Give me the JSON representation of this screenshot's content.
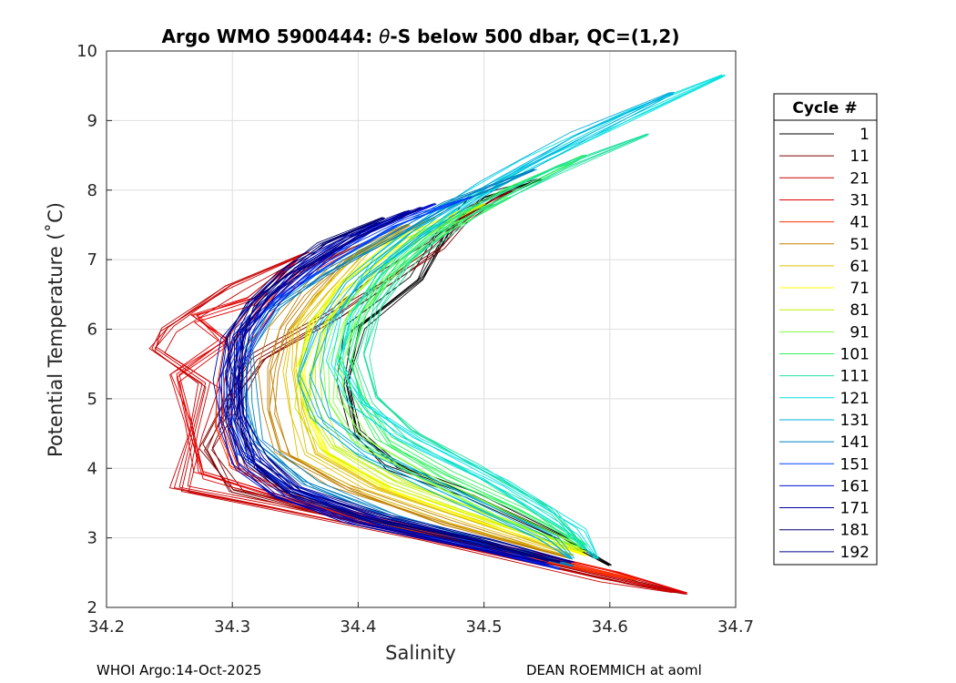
{
  "chart_data": {
    "type": "line",
    "title_prefix": "Argo WMO 5900444:",
    "title_theta": "θ",
    "title_suffix": "-S below 500 dbar,  QC=(1,2)",
    "xlabel": "Salinity",
    "ylabel": "Potential Temperature (˚C)",
    "xlim": [
      34.2,
      34.7
    ],
    "ylim": [
      2,
      10
    ],
    "xticks": [
      34.2,
      34.3,
      34.4,
      34.5,
      34.6,
      34.7
    ],
    "xtick_labels": [
      "34.2",
      "34.3",
      "34.4",
      "34.5",
      "34.6",
      "34.7"
    ],
    "yticks": [
      2,
      3,
      4,
      5,
      6,
      7,
      8,
      9,
      10
    ],
    "ytick_labels": [
      "2",
      "3",
      "4",
      "5",
      "6",
      "7",
      "8",
      "9",
      "10"
    ],
    "grid": true,
    "legend_title": "Cycle #",
    "legend_position": "right-outside",
    "series": [
      {
        "name": "1",
        "color": "#000000",
        "points": [
          [
            34.545,
            8.15
          ],
          [
            34.5,
            7.85
          ],
          [
            34.47,
            7.35
          ],
          [
            34.45,
            6.7
          ],
          [
            34.4,
            6.0
          ],
          [
            34.39,
            5.2
          ],
          [
            34.4,
            4.5
          ],
          [
            34.43,
            4.0
          ],
          [
            34.49,
            3.6
          ],
          [
            34.56,
            3.0
          ],
          [
            34.6,
            2.6
          ]
        ]
      },
      {
        "name": "11",
        "color": "#7f0000",
        "points": [
          [
            34.52,
            8.0
          ],
          [
            34.48,
            7.6
          ],
          [
            34.46,
            7.2
          ],
          [
            34.43,
            6.8
          ],
          [
            34.38,
            6.2
          ],
          [
            34.32,
            5.6
          ],
          [
            34.3,
            5.0
          ],
          [
            34.28,
            4.3
          ],
          [
            34.3,
            3.7
          ],
          [
            34.38,
            3.35
          ],
          [
            34.5,
            2.85
          ],
          [
            34.62,
            2.35
          ],
          [
            34.66,
            2.2
          ]
        ]
      },
      {
        "name": "21",
        "color": "#c80000",
        "points": [
          [
            34.36,
            7.1
          ],
          [
            34.3,
            6.6
          ],
          [
            34.25,
            6.0
          ],
          [
            34.24,
            5.7
          ],
          [
            34.28,
            5.2
          ],
          [
            34.27,
            4.5
          ],
          [
            34.26,
            3.7
          ],
          [
            34.33,
            3.45
          ],
          [
            34.45,
            3.0
          ],
          [
            34.6,
            2.4
          ],
          [
            34.65,
            2.22
          ]
        ]
      },
      {
        "name": "31",
        "color": "#e00000",
        "points": [
          [
            34.35,
            7.0
          ],
          [
            34.31,
            6.4
          ],
          [
            34.265,
            6.15
          ],
          [
            34.29,
            5.8
          ],
          [
            34.25,
            5.3
          ],
          [
            34.26,
            4.6
          ],
          [
            34.27,
            3.9
          ],
          [
            34.36,
            3.4
          ],
          [
            34.48,
            2.95
          ],
          [
            34.6,
            2.45
          ],
          [
            34.66,
            2.2
          ]
        ]
      },
      {
        "name": "41",
        "color": "#ff3000",
        "points": [
          [
            34.4,
            7.2
          ],
          [
            34.35,
            6.8
          ],
          [
            34.32,
            6.3
          ],
          [
            34.3,
            5.8
          ],
          [
            34.29,
            5.2
          ],
          [
            34.29,
            4.6
          ],
          [
            34.3,
            4.0
          ],
          [
            34.36,
            3.5
          ],
          [
            34.47,
            3.0
          ],
          [
            34.58,
            2.55
          ],
          [
            34.62,
            2.4
          ]
        ]
      },
      {
        "name": "51",
        "color": "#c08000",
        "points": [
          [
            34.44,
            7.5
          ],
          [
            34.39,
            7.0
          ],
          [
            34.36,
            6.5
          ],
          [
            34.34,
            6.0
          ],
          [
            34.33,
            5.4
          ],
          [
            34.33,
            4.8
          ],
          [
            34.34,
            4.2
          ],
          [
            34.39,
            3.7
          ],
          [
            34.47,
            3.2
          ],
          [
            34.57,
            2.7
          ]
        ]
      },
      {
        "name": "61",
        "color": "#e0c000",
        "points": [
          [
            34.46,
            7.6
          ],
          [
            34.4,
            7.1
          ],
          [
            34.37,
            6.5
          ],
          [
            34.35,
            6.0
          ],
          [
            34.345,
            5.4
          ],
          [
            34.35,
            4.8
          ],
          [
            34.36,
            4.2
          ],
          [
            34.41,
            3.7
          ],
          [
            34.49,
            3.2
          ],
          [
            34.57,
            2.75
          ]
        ]
      },
      {
        "name": "71",
        "color": "#ffff00",
        "points": [
          [
            34.48,
            7.7
          ],
          [
            34.42,
            7.2
          ],
          [
            34.38,
            6.6
          ],
          [
            34.36,
            6.0
          ],
          [
            34.35,
            5.4
          ],
          [
            34.355,
            4.8
          ],
          [
            34.37,
            4.2
          ],
          [
            34.42,
            3.7
          ],
          [
            34.5,
            3.2
          ],
          [
            34.58,
            2.75
          ]
        ]
      },
      {
        "name": "81",
        "color": "#c0f000",
        "points": [
          [
            34.5,
            7.8
          ],
          [
            34.44,
            7.3
          ],
          [
            34.4,
            6.7
          ],
          [
            34.37,
            6.1
          ],
          [
            34.36,
            5.5
          ],
          [
            34.36,
            4.9
          ],
          [
            34.38,
            4.3
          ],
          [
            34.43,
            3.8
          ],
          [
            34.51,
            3.25
          ],
          [
            34.58,
            2.8
          ]
        ]
      },
      {
        "name": "91",
        "color": "#80ff40",
        "points": [
          [
            34.52,
            7.9
          ],
          [
            34.46,
            7.4
          ],
          [
            34.42,
            6.8
          ],
          [
            34.39,
            6.2
          ],
          [
            34.38,
            5.6
          ],
          [
            34.38,
            5.0
          ],
          [
            34.4,
            4.4
          ],
          [
            34.45,
            3.9
          ],
          [
            34.52,
            3.3
          ],
          [
            34.58,
            2.85
          ]
        ]
      },
      {
        "name": "101",
        "color": "#30f060",
        "points": [
          [
            34.58,
            8.5
          ],
          [
            34.52,
            8.0
          ],
          [
            34.46,
            7.4
          ],
          [
            34.42,
            6.8
          ],
          [
            34.4,
            6.2
          ],
          [
            34.39,
            5.6
          ],
          [
            34.4,
            5.0
          ],
          [
            34.42,
            4.4
          ],
          [
            34.47,
            3.9
          ],
          [
            34.53,
            3.4
          ],
          [
            34.58,
            2.9
          ]
        ]
      },
      {
        "name": "111",
        "color": "#20e0a0",
        "points": [
          [
            34.63,
            8.8
          ],
          [
            34.56,
            8.3
          ],
          [
            34.49,
            7.7
          ],
          [
            34.44,
            7.0
          ],
          [
            34.41,
            6.3
          ],
          [
            34.4,
            5.6
          ],
          [
            34.41,
            5.0
          ],
          [
            34.44,
            4.5
          ],
          [
            34.49,
            4.0
          ],
          [
            34.55,
            3.4
          ],
          [
            34.58,
            2.85
          ]
        ]
      },
      {
        "name": "121",
        "color": "#00e0e0",
        "points": [
          [
            34.69,
            9.65
          ],
          [
            34.62,
            9.1
          ],
          [
            34.54,
            8.4
          ],
          [
            34.47,
            7.7
          ],
          [
            34.42,
            7.0
          ],
          [
            34.39,
            6.2
          ],
          [
            34.38,
            5.5
          ],
          [
            34.4,
            4.9
          ],
          [
            34.44,
            4.4
          ],
          [
            34.51,
            3.8
          ],
          [
            34.57,
            3.1
          ],
          [
            34.59,
            2.7
          ]
        ]
      },
      {
        "name": "131",
        "color": "#00b0e0",
        "points": [
          [
            34.65,
            9.4
          ],
          [
            34.58,
            8.8
          ],
          [
            34.51,
            8.1
          ],
          [
            34.45,
            7.4
          ],
          [
            34.4,
            6.7
          ],
          [
            34.37,
            6.0
          ],
          [
            34.36,
            5.3
          ],
          [
            34.37,
            4.7
          ],
          [
            34.41,
            4.2
          ],
          [
            34.48,
            3.6
          ],
          [
            34.55,
            3.0
          ],
          [
            34.57,
            2.7
          ]
        ]
      },
      {
        "name": "141",
        "color": "#0080c0",
        "points": [
          [
            34.54,
            8.3
          ],
          [
            34.47,
            7.8
          ],
          [
            34.42,
            7.3
          ],
          [
            34.37,
            6.8
          ],
          [
            34.33,
            6.3
          ],
          [
            34.31,
            5.7
          ],
          [
            34.31,
            5.0
          ],
          [
            34.32,
            4.4
          ],
          [
            34.36,
            3.8
          ],
          [
            34.43,
            3.3
          ],
          [
            34.51,
            2.9
          ],
          [
            34.57,
            2.6
          ]
        ]
      },
      {
        "name": "151",
        "color": "#0040ff",
        "points": [
          [
            34.49,
            7.9
          ],
          [
            34.43,
            7.5
          ],
          [
            34.38,
            7.0
          ],
          [
            34.34,
            6.5
          ],
          [
            34.31,
            6.0
          ],
          [
            34.3,
            5.4
          ],
          [
            34.3,
            4.8
          ],
          [
            34.31,
            4.2
          ],
          [
            34.35,
            3.7
          ],
          [
            34.42,
            3.2
          ],
          [
            34.5,
            2.85
          ],
          [
            34.56,
            2.55
          ]
        ]
      },
      {
        "name": "161",
        "color": "#0010d0",
        "points": [
          [
            34.46,
            7.8
          ],
          [
            34.4,
            7.4
          ],
          [
            34.36,
            6.9
          ],
          [
            34.33,
            6.4
          ],
          [
            34.31,
            5.9
          ],
          [
            34.3,
            5.3
          ],
          [
            34.3,
            4.6
          ],
          [
            34.31,
            4.0
          ],
          [
            34.34,
            3.6
          ],
          [
            34.41,
            3.2
          ],
          [
            34.49,
            2.9
          ],
          [
            34.55,
            2.6
          ]
        ]
      },
      {
        "name": "171",
        "color": "#0000a0",
        "points": [
          [
            34.44,
            7.7
          ],
          [
            34.39,
            7.3
          ],
          [
            34.35,
            6.85
          ],
          [
            34.32,
            6.4
          ],
          [
            34.3,
            5.9
          ],
          [
            34.295,
            5.3
          ],
          [
            34.3,
            4.7
          ],
          [
            34.31,
            4.1
          ],
          [
            34.34,
            3.65
          ],
          [
            34.4,
            3.25
          ],
          [
            34.48,
            2.95
          ],
          [
            34.55,
            2.65
          ]
        ]
      },
      {
        "name": "181",
        "color": "#000070",
        "points": [
          [
            34.42,
            7.6
          ],
          [
            34.37,
            7.2
          ],
          [
            34.34,
            6.8
          ],
          [
            34.315,
            6.35
          ],
          [
            34.3,
            5.85
          ],
          [
            34.3,
            5.25
          ],
          [
            34.3,
            4.65
          ],
          [
            34.315,
            4.05
          ],
          [
            34.345,
            3.65
          ],
          [
            34.41,
            3.25
          ],
          [
            34.49,
            2.95
          ],
          [
            34.56,
            2.65
          ]
        ]
      },
      {
        "name": "192",
        "color": "#000090",
        "points": [
          [
            34.45,
            7.75
          ],
          [
            34.4,
            7.35
          ],
          [
            34.355,
            6.9
          ],
          [
            34.325,
            6.45
          ],
          [
            34.305,
            5.95
          ],
          [
            34.3,
            5.35
          ],
          [
            34.305,
            4.75
          ],
          [
            34.32,
            4.15
          ],
          [
            34.35,
            3.7
          ],
          [
            34.42,
            3.3
          ],
          [
            34.5,
            2.95
          ],
          [
            34.57,
            2.65
          ]
        ]
      }
    ]
  },
  "footer": {
    "left": "WHOI Argo:14-Oct-2025",
    "right": "DEAN ROEMMICH at aoml"
  }
}
